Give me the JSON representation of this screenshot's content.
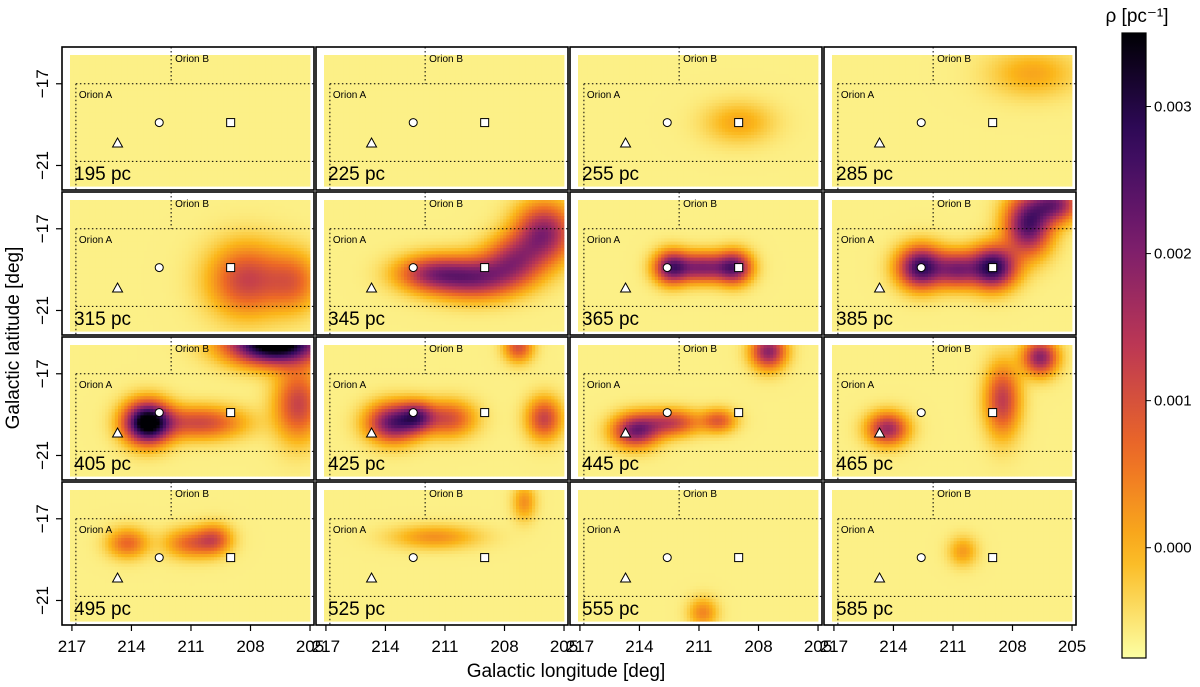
{
  "chart_data": {
    "type": "heatmap",
    "xlabel": "Galactic longitude [deg]",
    "ylabel": "Galactic latitude [deg]",
    "colorbar_label": "ρ [pc⁻¹]",
    "colorbar_ticks": [
      "0.003",
      "0.002",
      "0.001",
      "0.000"
    ],
    "colorbar_tick_values": [
      0.003,
      0.002,
      0.001,
      0.0
    ],
    "colorbar_range": [
      -0.00075,
      0.0035
    ],
    "x_range": [
      217.5,
      204.8
    ],
    "y_range": [
      -22.2,
      -15.2
    ],
    "x_ticks": [
      "217",
      "214",
      "211",
      "208",
      "205"
    ],
    "x_tick_values": [
      217,
      214,
      211,
      208,
      205
    ],
    "y_ticks": [
      "−17",
      "−21"
    ],
    "y_tick_values": [
      -17,
      -21
    ],
    "grid": "4x4 panels",
    "colormap": [
      "#000004",
      "#320a5e",
      "#781c6d",
      "#bc3754",
      "#ed6925",
      "#fbb61a",
      "#fcffa4"
    ],
    "region_labels": {
      "orion_a": "Orion A",
      "orion_b": "Orion B"
    },
    "markers": [
      {
        "shape": "triangle",
        "l": 214.7,
        "b": -19.9
      },
      {
        "shape": "circle",
        "l": 212.6,
        "b": -18.9
      },
      {
        "shape": "square",
        "l": 209.0,
        "b": -18.9
      }
    ],
    "panels": [
      {
        "label": "195 pc",
        "blobs": []
      },
      {
        "label": "225 pc",
        "blobs": []
      },
      {
        "label": "255 pc",
        "blobs": [
          {
            "l": 209,
            "b": -18.9,
            "sl": 1.2,
            "sb": 0.7,
            "v": 0.0001
          }
        ]
      },
      {
        "label": "285 pc",
        "blobs": [
          {
            "l": 207,
            "b": -16.5,
            "sl": 1.5,
            "sb": 0.8,
            "v": 0.0001
          }
        ]
      },
      {
        "label": "315 pc",
        "blobs": [
          {
            "l": 208.2,
            "b": -19.5,
            "sl": 1.3,
            "sb": 1.2,
            "v": 0.0012
          },
          {
            "l": 205.8,
            "b": -19.6,
            "sl": 0.9,
            "sb": 1.0,
            "v": 0.0006
          }
        ]
      },
      {
        "label": "345 pc",
        "blobs": [
          {
            "l": 206,
            "b": -17.2,
            "sl": 1.0,
            "sb": 1.0,
            "v": 0.0019
          },
          {
            "l": 209.5,
            "b": -19.4,
            "sl": 1.5,
            "sb": 0.7,
            "v": 0.0019
          },
          {
            "l": 211.8,
            "b": -19.2,
            "sl": 1.2,
            "sb": 0.6,
            "v": 0.0012
          },
          {
            "l": 207.5,
            "b": -18.5,
            "sl": 1.0,
            "sb": 0.8,
            "v": 0.0012
          }
        ]
      },
      {
        "label": "365 pc",
        "blobs": [
          {
            "l": 212.4,
            "b": -18.9,
            "sl": 0.6,
            "sb": 0.55,
            "v": 0.0021
          },
          {
            "l": 210.8,
            "b": -18.9,
            "sl": 0.9,
            "sb": 0.5,
            "v": 0.0019
          },
          {
            "l": 209.2,
            "b": -18.9,
            "sl": 0.6,
            "sb": 0.55,
            "v": 0.002
          }
        ]
      },
      {
        "label": "385 pc",
        "blobs": [
          {
            "l": 212.6,
            "b": -18.9,
            "sl": 0.8,
            "sb": 0.7,
            "v": 0.0028
          },
          {
            "l": 209.0,
            "b": -18.9,
            "sl": 0.8,
            "sb": 0.7,
            "v": 0.003
          },
          {
            "l": 210.8,
            "b": -19.0,
            "sl": 0.7,
            "sb": 0.6,
            "v": 0.0016
          },
          {
            "l": 207.2,
            "b": -16.8,
            "sl": 0.8,
            "sb": 1.0,
            "v": 0.0025
          },
          {
            "l": 205.8,
            "b": -15.8,
            "sl": 0.8,
            "sb": 0.6,
            "v": 0.0018
          }
        ]
      },
      {
        "label": "405 pc",
        "blobs": [
          {
            "l": 213.2,
            "b": -19.4,
            "sl": 0.8,
            "sb": 0.7,
            "v": 0.0038
          },
          {
            "l": 206.8,
            "b": -15.5,
            "sl": 1.6,
            "sb": 0.7,
            "v": 0.0042
          },
          {
            "l": 210.5,
            "b": -19.4,
            "sl": 1.5,
            "sb": 0.55,
            "v": 0.0011
          },
          {
            "l": 205.6,
            "b": -18.5,
            "sl": 0.8,
            "sb": 1.2,
            "v": 0.0012
          }
        ]
      },
      {
        "label": "425 pc",
        "blobs": [
          {
            "l": 213.6,
            "b": -19.4,
            "sl": 0.9,
            "sb": 0.65,
            "v": 0.0023
          },
          {
            "l": 212.4,
            "b": -19.1,
            "sl": 0.6,
            "sb": 0.5,
            "v": 0.0014
          },
          {
            "l": 210.8,
            "b": -19.2,
            "sl": 0.9,
            "sb": 0.6,
            "v": 0.001
          },
          {
            "l": 206.0,
            "b": -19.2,
            "sl": 0.6,
            "sb": 0.7,
            "v": 0.0012
          },
          {
            "l": 207.3,
            "b": -15.7,
            "sl": 0.5,
            "sb": 0.5,
            "v": 0.001
          }
        ]
      },
      {
        "label": "445 pc",
        "blobs": [
          {
            "l": 214.2,
            "b": -19.8,
            "sl": 0.8,
            "sb": 0.55,
            "v": 0.002
          },
          {
            "l": 212.4,
            "b": -19.4,
            "sl": 1.0,
            "sb": 0.45,
            "v": 0.0012
          },
          {
            "l": 210.0,
            "b": -19.3,
            "sl": 0.6,
            "sb": 0.4,
            "v": 0.0008
          },
          {
            "l": 207.5,
            "b": -15.9,
            "sl": 0.6,
            "sb": 0.6,
            "v": 0.0019
          }
        ]
      },
      {
        "label": "465 pc",
        "blobs": [
          {
            "l": 214.3,
            "b": -19.7,
            "sl": 0.7,
            "sb": 0.55,
            "v": 0.0017
          },
          {
            "l": 206.6,
            "b": -16.2,
            "sl": 0.6,
            "sb": 0.6,
            "v": 0.0019
          },
          {
            "l": 208.5,
            "b": -18.3,
            "sl": 0.6,
            "sb": 1.2,
            "v": 0.0013
          }
        ]
      },
      {
        "label": "495 pc",
        "blobs": [
          {
            "l": 214.2,
            "b": -18.2,
            "sl": 0.7,
            "sb": 0.5,
            "v": 0.0007
          },
          {
            "l": 211.0,
            "b": -18.2,
            "sl": 0.9,
            "sb": 0.5,
            "v": 0.0007
          },
          {
            "l": 209.8,
            "b": -18.0,
            "sl": 0.6,
            "sb": 0.5,
            "v": 0.0007
          }
        ]
      },
      {
        "label": "525 pc",
        "blobs": [
          {
            "l": 211.5,
            "b": -17.9,
            "sl": 1.5,
            "sb": 0.4,
            "v": 0.0003
          },
          {
            "l": 207.0,
            "b": -16.2,
            "sl": 0.4,
            "sb": 0.6,
            "v": 0.0003
          }
        ]
      },
      {
        "label": "555 pc",
        "blobs": [
          {
            "l": 210.8,
            "b": -21.6,
            "sl": 0.5,
            "sb": 0.5,
            "v": 0.0004
          }
        ]
      },
      {
        "label": "585 pc",
        "blobs": [
          {
            "l": 210.5,
            "b": -18.6,
            "sl": 0.5,
            "sb": 0.5,
            "v": 0.0002
          }
        ]
      }
    ]
  }
}
